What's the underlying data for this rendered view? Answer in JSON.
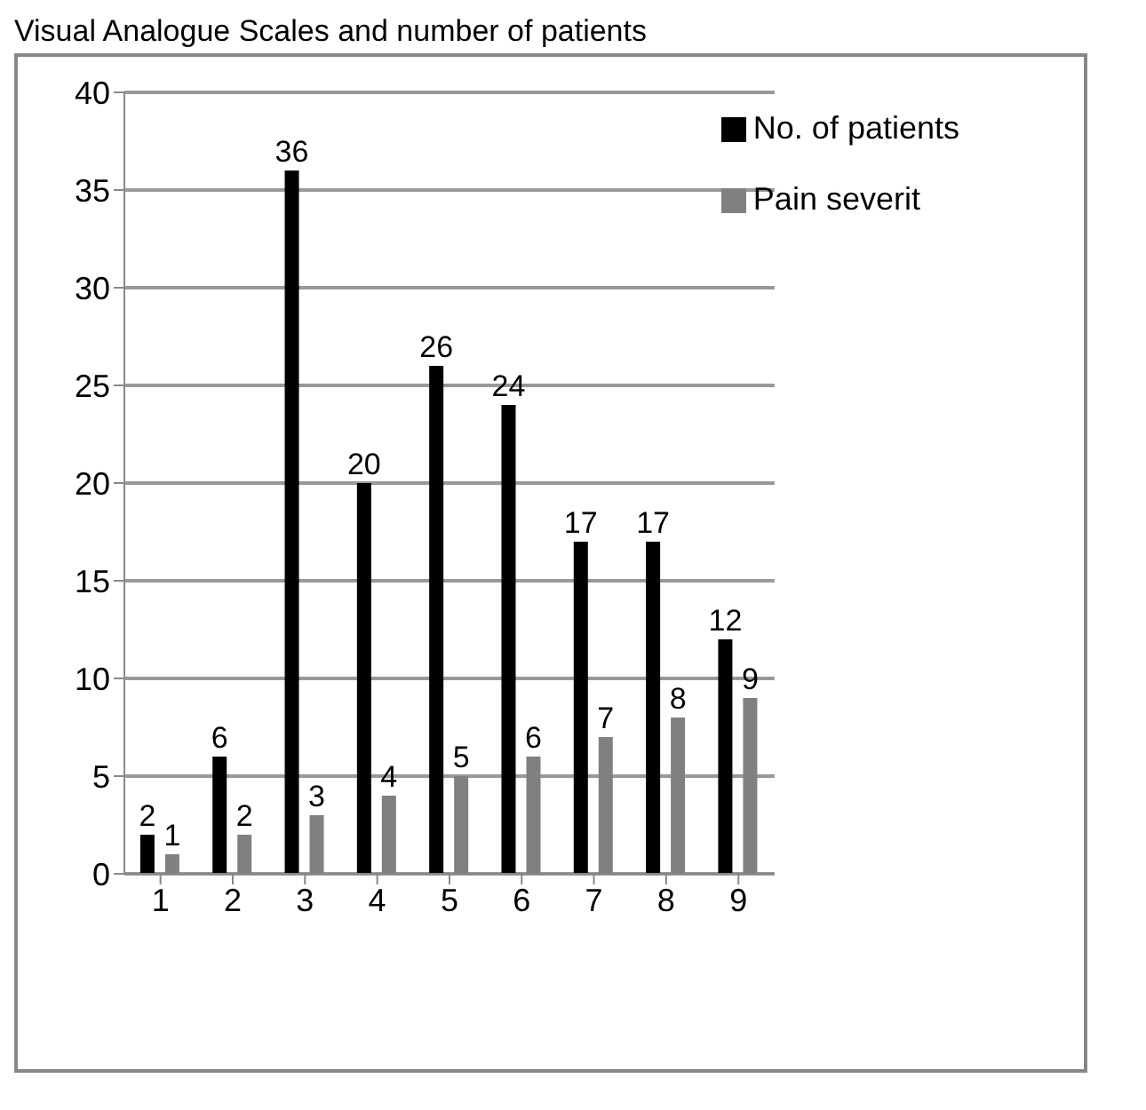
{
  "chart_data": {
    "type": "bar",
    "title": "Visual Analogue Scales and number of patients",
    "categories": [
      "1",
      "2",
      "3",
      "4",
      "5",
      "6",
      "7",
      "8",
      "9"
    ],
    "series": [
      {
        "name": "No. of patients",
        "color": "#000000",
        "values": [
          2,
          6,
          36,
          20,
          26,
          24,
          17,
          17,
          12
        ]
      },
      {
        "name": "Pain severit",
        "color": "#808080",
        "values": [
          1,
          2,
          3,
          4,
          5,
          6,
          7,
          8,
          9
        ]
      }
    ],
    "ylim": [
      0,
      40
    ],
    "yticks": [
      0,
      5,
      10,
      15,
      20,
      25,
      30,
      35,
      40
    ],
    "grid": "y",
    "legend": "top right",
    "data_labels": true
  }
}
